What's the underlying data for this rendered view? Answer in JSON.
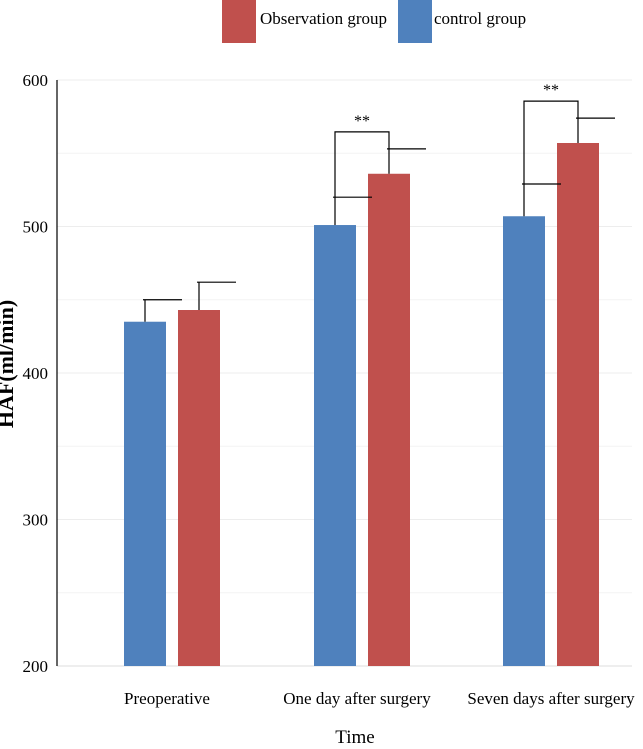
{
  "chart_data": {
    "type": "bar",
    "title": "",
    "xlabel": "Time",
    "ylabel": "HAF(ml/min)",
    "ylim": [
      200,
      600
    ],
    "yticks": [
      200,
      300,
      400,
      500,
      600
    ],
    "grid": true,
    "legend_position": "top-center",
    "categories": [
      "Preoperative",
      "One day after surgery",
      "Seven days after surgery"
    ],
    "series": [
      {
        "name": "control group",
        "color": "#4f81bd",
        "values": [
          435,
          501,
          507
        ],
        "errors": [
          15,
          19,
          22
        ]
      },
      {
        "name": "Observation group",
        "color": "#c0504d",
        "values": [
          443,
          536,
          557
        ],
        "errors": [
          19,
          17,
          17
        ]
      }
    ],
    "legend_order": [
      1,
      0
    ],
    "significance": [
      "",
      "**",
      "**"
    ]
  }
}
